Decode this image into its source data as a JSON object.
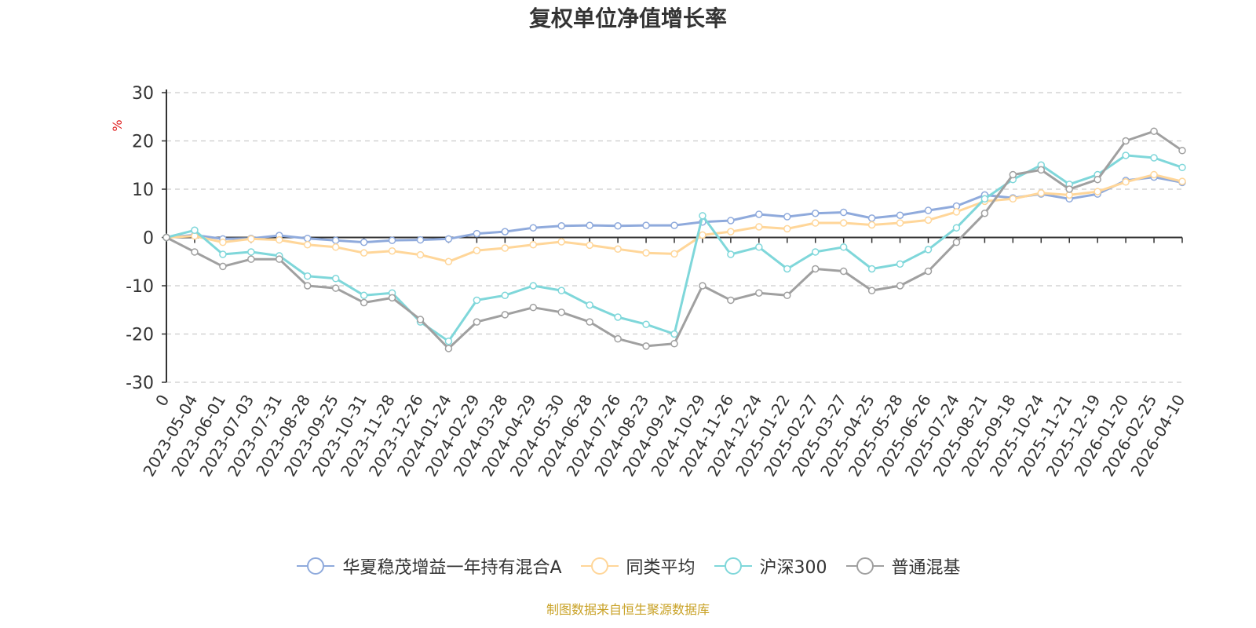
{
  "chart_data": {
    "type": "line",
    "title": "复权单位净值增长率",
    "ylabel": "%",
    "xlabel": "",
    "ylim": [
      -30,
      30
    ],
    "yticks": [
      30,
      20,
      10,
      0,
      -10,
      -20,
      -30
    ],
    "grid": true,
    "legend_position": "bottom",
    "x": [
      "0",
      "2023-05-04",
      "2023-06-01",
      "2023-07-03",
      "2023-07-31",
      "2023-08-28",
      "2023-09-25",
      "2023-10-31",
      "2023-11-28",
      "2023-12-26",
      "2024-01-24",
      "2024-02-29",
      "2024-03-28",
      "2024-04-29",
      "2024-05-30",
      "2024-06-28",
      "2024-07-26",
      "2024-08-23",
      "2024-09-24",
      "2024-10-29",
      "2024-11-26",
      "2024-12-24",
      "2025-01-22",
      "2025-02-27",
      "2025-03-27",
      "2025-04-25",
      "2025-05-28",
      "2025-06-26",
      "2025-07-24",
      "2025-08-21",
      "2025-09-18",
      "2025-10-24",
      "2025-11-21",
      "2025-12-19",
      "2026-01-20",
      "2026-02-25",
      "2026-04-10"
    ],
    "series": [
      {
        "name": "华夏稳茂增益一年持有混合A",
        "color": "#8faadc",
        "values": [
          0,
          0.5,
          -0.3,
          -0.2,
          0.4,
          -0.2,
          -0.6,
          -1.0,
          -0.6,
          -0.5,
          -0.3,
          0.8,
          1.2,
          2.0,
          2.4,
          2.5,
          2.4,
          2.5,
          2.5,
          3.2,
          3.5,
          4.8,
          4.3,
          5.0,
          5.2,
          4.0,
          4.6,
          5.6,
          6.5,
          8.8,
          8.2,
          9.0,
          8.0,
          9.0,
          11.8,
          12.5,
          11.4
        ]
      },
      {
        "name": "同类平均",
        "color": "#ffd699",
        "values": [
          0,
          0.3,
          -1.0,
          -0.3,
          -0.5,
          -1.5,
          -2.0,
          -3.2,
          -2.8,
          -3.6,
          -5.0,
          -2.7,
          -2.2,
          -1.5,
          -0.9,
          -1.6,
          -2.4,
          -3.2,
          -3.4,
          0.5,
          1.2,
          2.2,
          1.8,
          3.0,
          3.0,
          2.6,
          3.0,
          3.6,
          5.3,
          7.5,
          8.0,
          9.2,
          8.8,
          9.5,
          11.5,
          13.0,
          11.6
        ]
      },
      {
        "name": "沪深300",
        "color": "#7fd7da",
        "values": [
          0,
          1.5,
          -3.5,
          -3.0,
          -3.8,
          -8.0,
          -8.5,
          -12.0,
          -11.5,
          -17.5,
          -21.5,
          -13.0,
          -12.0,
          -10.0,
          -11.0,
          -14.0,
          -16.5,
          -18.0,
          -20.0,
          4.5,
          -3.5,
          -2.0,
          -6.5,
          -3.0,
          -2.0,
          -6.5,
          -5.5,
          -2.5,
          2.0,
          8.0,
          12.0,
          15.0,
          11.0,
          13.0,
          17.0,
          16.5,
          14.5
        ]
      },
      {
        "name": "普通混基",
        "color": "#a0a0a0",
        "values": [
          0,
          -3.0,
          -6.0,
          -4.5,
          -4.5,
          -10.0,
          -10.5,
          -13.5,
          -12.5,
          -17.0,
          -23.0,
          -17.5,
          -16.0,
          -14.5,
          -15.5,
          -17.5,
          -21.0,
          -22.5,
          -22.0,
          -10.0,
          -13.0,
          -11.5,
          -12.0,
          -6.5,
          -7.0,
          -11.0,
          -10.0,
          -7.0,
          -1.0,
          5.0,
          13.0,
          14.0,
          10.0,
          12.0,
          20.0,
          22.0,
          18.0
        ]
      }
    ],
    "source_note": "制图数据来自恒生聚源数据库"
  }
}
